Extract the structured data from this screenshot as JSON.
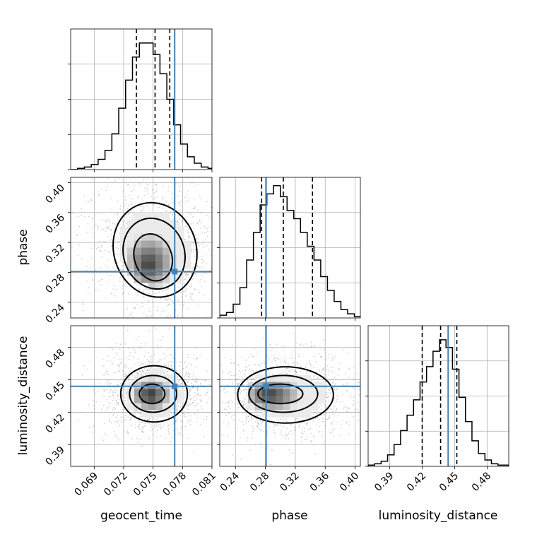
{
  "chart_data": {
    "type": "corner",
    "parameters": [
      "geocent_time",
      "phase",
      "luminosity_distance"
    ],
    "truths": {
      "geocent_time": 0.0772,
      "phase": 0.281,
      "luminosity_distance": 0.444
    },
    "colors": {
      "truth": "#4682b4",
      "line": "#000000",
      "grid": "#b0b0b0"
    },
    "grid": true,
    "marginals": [
      {
        "parameter": "geocent_time",
        "x_range": [
          0.0666,
          0.081
        ],
        "bin_edges": [
          0.0666,
          0.0673,
          0.068,
          0.0687,
          0.0694,
          0.0701,
          0.0708,
          0.0715,
          0.0722,
          0.0729,
          0.0736,
          0.0743,
          0.075,
          0.0757,
          0.0764,
          0.0771,
          0.0778,
          0.0785,
          0.0792,
          0.0799,
          0.0806,
          0.081
        ],
        "counts": [
          0,
          1,
          2,
          4,
          8,
          15,
          28,
          48,
          70,
          88,
          99,
          99,
          90,
          75,
          55,
          35,
          20,
          10,
          5,
          2,
          1
        ],
        "quantiles": [
          0.0733,
          0.0752,
          0.0767
        ],
        "y_max": 110
      },
      {
        "parameter": "phase",
        "x_range": [
          0.219,
          0.407
        ],
        "bin_edges": [
          0.219,
          0.228,
          0.237,
          0.246,
          0.255,
          0.264,
          0.273,
          0.282,
          0.291,
          0.3,
          0.309,
          0.318,
          0.327,
          0.336,
          0.345,
          0.354,
          0.363,
          0.372,
          0.381,
          0.39,
          0.399,
          0.407
        ],
        "counts": [
          2,
          4,
          10,
          22,
          42,
          62,
          82,
          90,
          96,
          88,
          78,
          72,
          62,
          52,
          42,
          30,
          20,
          12,
          6,
          3,
          1
        ],
        "quantiles": [
          0.275,
          0.304,
          0.343
        ],
        "y_max": 102
      },
      {
        "parameter": "luminosity_distance",
        "x_range": [
          0.37,
          0.5
        ],
        "bin_edges": [
          0.37,
          0.376,
          0.382,
          0.388,
          0.394,
          0.4,
          0.406,
          0.412,
          0.418,
          0.424,
          0.43,
          0.436,
          0.442,
          0.448,
          0.454,
          0.46,
          0.466,
          0.472,
          0.478,
          0.484,
          0.49,
          0.5
        ],
        "counts": [
          1,
          2,
          4,
          9,
          17,
          28,
          40,
          52,
          66,
          78,
          90,
          99,
          93,
          76,
          54,
          35,
          20,
          10,
          5,
          2,
          1
        ],
        "quantiles": [
          0.42,
          0.437,
          0.452
        ],
        "y_max": 110
      }
    ],
    "pairs": [
      {
        "x": "geocent_time",
        "y": "phase",
        "xlim": [
          0.0666,
          0.081
        ],
        "ylim": [
          0.219,
          0.407
        ],
        "density_peak": [
          0.0745,
          0.288
        ],
        "contours": [
          {
            "cx": 0.075,
            "cy": 0.3,
            "rx": 0.0019,
            "ry": 0.032,
            "rot": 0.55
          },
          {
            "cx": 0.0751,
            "cy": 0.305,
            "rx": 0.0031,
            "ry": 0.048,
            "rot": 0.55
          },
          {
            "cx": 0.0752,
            "cy": 0.31,
            "rx": 0.0042,
            "ry": 0.064,
            "rot": 0.55
          }
        ]
      },
      {
        "x": "geocent_time",
        "y": "luminosity_distance",
        "xlim": [
          0.0666,
          0.081
        ],
        "ylim": [
          0.37,
          0.5
        ],
        "density_peak": [
          0.0747,
          0.436
        ],
        "contours": [
          {
            "cx": 0.0749,
            "cy": 0.437,
            "rx": 0.0013,
            "ry": 0.009,
            "rot": 0.0
          },
          {
            "cx": 0.075,
            "cy": 0.437,
            "rx": 0.0024,
            "ry": 0.017,
            "rot": 0.0
          },
          {
            "cx": 0.0751,
            "cy": 0.437,
            "rx": 0.0034,
            "ry": 0.026,
            "rot": 0.0
          }
        ]
      },
      {
        "x": "phase",
        "y": "luminosity_distance",
        "xlim": [
          0.219,
          0.407
        ],
        "ylim": [
          0.37,
          0.5
        ],
        "density_peak": [
          0.284,
          0.436
        ],
        "contours": [
          {
            "cx": 0.3,
            "cy": 0.437,
            "rx": 0.03,
            "ry": 0.009,
            "rot": 0.0
          },
          {
            "cx": 0.304,
            "cy": 0.437,
            "rx": 0.046,
            "ry": 0.017,
            "rot": 0.0
          },
          {
            "cx": 0.307,
            "cy": 0.436,
            "rx": 0.064,
            "ry": 0.026,
            "rot": 0.0
          }
        ]
      }
    ],
    "xticks": {
      "geocent_time": [
        "0.069",
        "0.072",
        "0.075",
        "0.078",
        "0.081"
      ],
      "phase": [
        "0.24",
        "0.28",
        "0.32",
        "0.36",
        "0.40"
      ],
      "luminosity_distance": [
        "0.39",
        "0.42",
        "0.45",
        "0.48"
      ]
    },
    "yticks": {
      "phase": [
        "0.24",
        "0.28",
        "0.32",
        "0.36",
        "0.40"
      ],
      "luminosity_distance": [
        "0.39",
        "0.42",
        "0.45",
        "0.48"
      ]
    },
    "axis_labels": {
      "geocent_time": "geocent_time",
      "phase": "phase",
      "luminosity_distance": "luminosity_distance"
    }
  }
}
